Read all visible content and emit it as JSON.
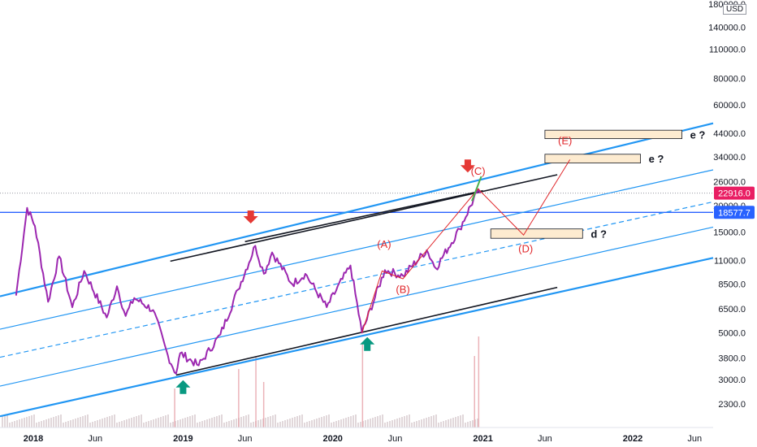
{
  "chart_data": {
    "type": "line",
    "symbol_currency": "USD",
    "y_scale": "log",
    "y_ticks": [
      "180000.0",
      "140000.0",
      "110000.0",
      "80000.0",
      "60000.0",
      "44000.0",
      "34000.0",
      "26000.0",
      "20000.0",
      "15000.0",
      "11000.0",
      "8500.0",
      "6500.0",
      "5000.0",
      "3800.0",
      "3000.0",
      "2300.0"
    ],
    "x_ticks": [
      {
        "label": "2018",
        "year": true
      },
      {
        "label": "Jun",
        "year": false
      },
      {
        "label": "2019",
        "year": true
      },
      {
        "label": "Jun",
        "year": false
      },
      {
        "label": "2020",
        "year": true
      },
      {
        "label": "Jun",
        "year": false
      },
      {
        "label": "2021",
        "year": true
      },
      {
        "label": "Jun",
        "year": false
      },
      {
        "label": "2022",
        "year": true
      },
      {
        "label": "Jun",
        "year": false
      }
    ],
    "price_tags": [
      {
        "value": "22916.0",
        "color": "#e91e63"
      },
      {
        "value": "18577.7",
        "color": "#2962ff"
      }
    ],
    "price_series": [
      {
        "date": "2017-11-20",
        "price": 7500
      },
      {
        "date": "2017-12-17",
        "price": 19500
      },
      {
        "date": "2018-01-05",
        "price": 16000
      },
      {
        "date": "2018-02-06",
        "price": 7000
      },
      {
        "date": "2018-03-05",
        "price": 11500
      },
      {
        "date": "2018-04-06",
        "price": 6600
      },
      {
        "date": "2018-05-05",
        "price": 9800
      },
      {
        "date": "2018-06-29",
        "price": 5900
      },
      {
        "date": "2018-07-24",
        "price": 8300
      },
      {
        "date": "2018-08-14",
        "price": 6000
      },
      {
        "date": "2018-09-04",
        "price": 7300
      },
      {
        "date": "2018-10-20",
        "price": 6400
      },
      {
        "date": "2018-11-25",
        "price": 3900
      },
      {
        "date": "2018-12-15",
        "price": 3200
      },
      {
        "date": "2018-12-25",
        "price": 4000
      },
      {
        "date": "2019-02-08",
        "price": 3500
      },
      {
        "date": "2019-04-02",
        "price": 4900
      },
      {
        "date": "2019-05-15",
        "price": 8000
      },
      {
        "date": "2019-06-26",
        "price": 12900
      },
      {
        "date": "2019-07-17",
        "price": 9500
      },
      {
        "date": "2019-08-06",
        "price": 12000
      },
      {
        "date": "2019-09-24",
        "price": 8500
      },
      {
        "date": "2019-10-26",
        "price": 9500
      },
      {
        "date": "2019-12-17",
        "price": 6600
      },
      {
        "date": "2020-02-13",
        "price": 10400
      },
      {
        "date": "2020-03-12",
        "price": 5000
      },
      {
        "date": "2020-05-07",
        "price": 9900
      },
      {
        "date": "2020-06-20",
        "price": 9300
      },
      {
        "date": "2020-08-17",
        "price": 12300
      },
      {
        "date": "2020-09-08",
        "price": 10100
      },
      {
        "date": "2020-11-05",
        "price": 15500
      },
      {
        "date": "2020-12-17",
        "price": 23000
      },
      {
        "date": "2020-12-25",
        "price": 22916
      }
    ],
    "channel_lines": [
      {
        "name": "upper",
        "color": "#2196f3",
        "width": 2.2,
        "dash": false,
        "from": {
          "date": "2017-11-01",
          "price": 7600
        },
        "to": {
          "date": "2022-07-15",
          "price": 49000
        }
      },
      {
        "name": "inner-upper",
        "color": "#2196f3",
        "width": 1.2,
        "dash": false,
        "from": {
          "date": "2017-11-01",
          "price": 5300
        },
        "to": {
          "date": "2022-07-15",
          "price": 29500
        }
      },
      {
        "name": "middle",
        "color": "#2196f3",
        "width": 1.2,
        "dash": true,
        "from": {
          "date": "2017-11-01",
          "price": 3900
        },
        "to": {
          "date": "2022-07-15",
          "price": 20800
        }
      },
      {
        "name": "inner-lower",
        "color": "#2196f3",
        "width": 1.2,
        "dash": false,
        "from": {
          "date": "2017-11-01",
          "price": 2850
        },
        "to": {
          "date": "2022-07-15",
          "price": 15800
        }
      },
      {
        "name": "lower",
        "color": "#2196f3",
        "width": 2.2,
        "dash": false,
        "from": {
          "date": "2017-11-01",
          "price": 2050
        },
        "to": {
          "date": "2022-07-15",
          "price": 11300
        }
      }
    ],
    "black_lines": [
      {
        "from": {
          "date": "2018-12-15",
          "price": 3150
        },
        "to": {
          "date": "2021-07-01",
          "price": 8200
        }
      },
      {
        "from": {
          "date": "2018-12-01",
          "price": 10900
        },
        "to": {
          "date": "2021-07-01",
          "price": 28000
        }
      },
      {
        "from": {
          "date": "2019-06-01",
          "price": 13500
        },
        "to": {
          "date": "2021-01-01",
          "price": 23500
        }
      }
    ],
    "horizontal_lines": [
      {
        "price": 18577.7,
        "color": "#2962ff",
        "dash": false
      },
      {
        "price": 22916,
        "color": "#9598a1",
        "dash": true
      }
    ],
    "wave_path": [
      {
        "date": "2020-03-12",
        "price": 5000
      },
      {
        "date": "2020-04-30",
        "price": 9800
      },
      {
        "date": "2020-06-20",
        "price": 9000
      },
      {
        "date": "2020-12-20",
        "price": 24000
      },
      {
        "date": "2021-04-10",
        "price": 14500
      },
      {
        "date": "2021-08-01",
        "price": 33000
      }
    ],
    "wave_labels": [
      {
        "label": "(A)",
        "date": "2020-05-05",
        "price": 12600
      },
      {
        "label": "(B)",
        "date": "2020-06-20",
        "price": 7700
      },
      {
        "label": "(C)",
        "date": "2020-12-20",
        "price": 28000
      },
      {
        "label": "(D)",
        "date": "2021-04-15",
        "price": 12000
      },
      {
        "label": "(E)",
        "date": "2021-07-20",
        "price": 39000
      }
    ],
    "target_boxes": [
      {
        "label": "e ?",
        "from": {
          "date": "2021-06-01",
          "price": 45500
        },
        "to": {
          "date": "2022-05-01",
          "price": 41500
        }
      },
      {
        "label": "e ?",
        "from": {
          "date": "2021-06-01",
          "price": 35000
        },
        "to": {
          "date": "2022-01-20",
          "price": 31800
        }
      },
      {
        "label": "d ?",
        "from": {
          "date": "2021-01-20",
          "price": 15500
        },
        "to": {
          "date": "2021-09-01",
          "price": 14000
        }
      }
    ],
    "arrows_down": [
      {
        "date": "2019-06-15",
        "price": 17500
      },
      {
        "date": "2020-11-25",
        "price": 30500
      }
    ],
    "arrows_up": [
      {
        "date": "2019-01-01",
        "price": 2750
      },
      {
        "date": "2020-03-25",
        "price": 4400
      }
    ],
    "volume_spikes": [
      {
        "date": "2018-12-10",
        "value": 0.3
      },
      {
        "date": "2019-05-15",
        "value": 0.45
      },
      {
        "date": "2019-06-26",
        "value": 0.55
      },
      {
        "date": "2019-07-15",
        "value": 0.35
      },
      {
        "date": "2020-03-12",
        "value": 0.65
      },
      {
        "date": "2020-12-10",
        "value": 0.55
      },
      {
        "date": "2020-12-20",
        "value": 0.7
      }
    ]
  }
}
